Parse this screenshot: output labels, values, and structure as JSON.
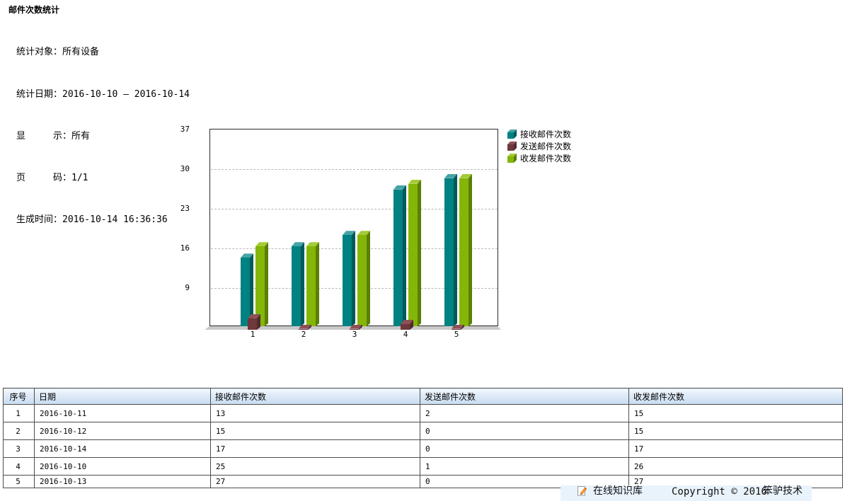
{
  "header": {
    "title": "邮件次数统计",
    "info_lines": [
      "统计对象：所有设备",
      "统计日期：2016-10-10 — 2016-10-14",
      "显　　　示：所有",
      "页　　　码：1/1",
      "生成时间：2016-10-14 16:36:36"
    ]
  },
  "chart_data": {
    "type": "bar",
    "categories": [
      "1",
      "2",
      "3",
      "4",
      "5"
    ],
    "series": [
      {
        "name": "接收邮件次数",
        "values": [
          13,
          15,
          17,
          25,
          27
        ],
        "color": "#008182",
        "color_side": "#00595a",
        "color_top": "#45a4a5",
        "row": "back"
      },
      {
        "name": "发送邮件次数",
        "values": [
          2,
          0,
          0,
          1,
          0
        ],
        "color": "#6f383c",
        "color_side": "#512a2e",
        "color_top": "#8d5156",
        "row": "front"
      },
      {
        "name": "收发邮件次数",
        "values": [
          15,
          15,
          17,
          26,
          27
        ],
        "color": "#84b607",
        "color_side": "#5b7f05",
        "color_top": "#a4cc37",
        "row": "back"
      }
    ],
    "yticks": [
      9,
      16,
      23,
      30,
      37
    ],
    "ylim": [
      1,
      37
    ],
    "xlabel": "",
    "ylabel": "",
    "grid": true,
    "legend_position": "right"
  },
  "table": {
    "headers": [
      "序号",
      "日期",
      "接收邮件次数",
      "发送邮件次数",
      "收发邮件次数"
    ],
    "rows": [
      [
        "1",
        "2016-10-11",
        "13",
        "2",
        "15"
      ],
      [
        "2",
        "2016-10-12",
        "15",
        "0",
        "15"
      ],
      [
        "3",
        "2016-10-14",
        "17",
        "0",
        "17"
      ],
      [
        "4",
        "2016-10-10",
        "25",
        "1",
        "26"
      ],
      [
        "5",
        "2016-10-13",
        "27",
        "0",
        "27"
      ]
    ]
  },
  "footer": {
    "knowledge_base": "在线知识库",
    "copyright": "Copyright © 2016",
    "company": "笨驴技术"
  }
}
